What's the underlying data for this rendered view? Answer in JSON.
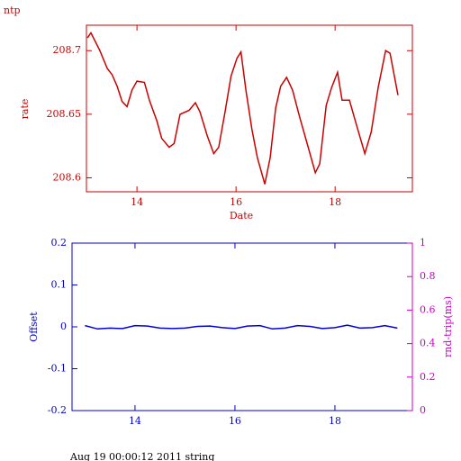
{
  "chart_data": [
    {
      "type": "line",
      "title": "ntp",
      "xlabel": "Date",
      "ylabel": "rate",
      "color": "#cc0000",
      "xlim": [
        12.98,
        19.56
      ],
      "xticks": [
        14,
        16,
        18
      ],
      "ylim": [
        208.589,
        208.72
      ],
      "yticks": [
        208.6,
        208.65,
        208.7
      ],
      "x": [
        13.0,
        13.07,
        13.25,
        13.4,
        13.5,
        13.6,
        13.7,
        13.8,
        13.9,
        14.0,
        14.15,
        14.25,
        14.4,
        14.5,
        14.65,
        14.75,
        14.87,
        15.05,
        15.18,
        15.27,
        15.42,
        15.55,
        15.65,
        15.78,
        15.9,
        16.02,
        16.1,
        16.2,
        16.32,
        16.43,
        16.58,
        16.69,
        16.8,
        16.9,
        17.02,
        17.14,
        17.29,
        17.42,
        17.6,
        17.69,
        17.82,
        17.93,
        18.05,
        18.14,
        18.29,
        18.42,
        18.6,
        18.73,
        18.87,
        19.02,
        19.11,
        19.27
      ],
      "values": [
        208.71,
        208.714,
        208.7,
        208.686,
        208.681,
        208.672,
        208.66,
        208.656,
        208.669,
        208.676,
        208.675,
        208.661,
        208.645,
        208.631,
        208.624,
        208.627,
        208.65,
        208.653,
        208.659,
        208.652,
        208.633,
        208.619,
        208.624,
        208.652,
        208.68,
        208.694,
        208.699,
        208.669,
        208.638,
        208.616,
        208.595,
        208.616,
        208.655,
        208.672,
        208.679,
        208.669,
        208.647,
        208.629,
        208.604,
        208.611,
        208.657,
        208.671,
        208.683,
        208.661,
        208.661,
        208.643,
        208.619,
        208.636,
        208.671,
        208.7,
        208.698,
        208.665
      ]
    },
    {
      "type": "line",
      "ylabel": "Offset",
      "y2label": "rnd-trip(ms)",
      "color": "#0000dd",
      "axis_color": "#0000cc",
      "y2_color": "#cc00cc",
      "xlim": [
        12.74,
        19.55
      ],
      "xticks": [
        14,
        16,
        18
      ],
      "ylim": [
        -0.2,
        0.2
      ],
      "yticks": [
        -0.2,
        -0.1,
        0,
        0.1,
        0.2
      ],
      "y2lim": [
        0,
        1
      ],
      "y2ticks": [
        0,
        0.2,
        0.4,
        0.6,
        0.8,
        1
      ],
      "x": [
        13.0,
        13.25,
        13.5,
        13.75,
        14.0,
        14.25,
        14.5,
        14.75,
        15.0,
        15.25,
        15.5,
        15.75,
        16.0,
        16.25,
        16.5,
        16.75,
        17.0,
        17.25,
        17.5,
        17.75,
        18.0,
        18.25,
        18.5,
        18.75,
        19.0,
        19.25
      ],
      "values": [
        0.003,
        -0.005,
        -0.003,
        -0.004,
        0.003,
        0.002,
        -0.003,
        -0.004,
        -0.003,
        0.001,
        0.002,
        -0.002,
        -0.004,
        0.002,
        0.003,
        -0.005,
        -0.003,
        0.003,
        0.001,
        -0.004,
        -0.002,
        0.004,
        -0.003,
        -0.002,
        0.003,
        -0.003
      ]
    }
  ],
  "footer": "Aug 19 00:00:12 2011 string"
}
